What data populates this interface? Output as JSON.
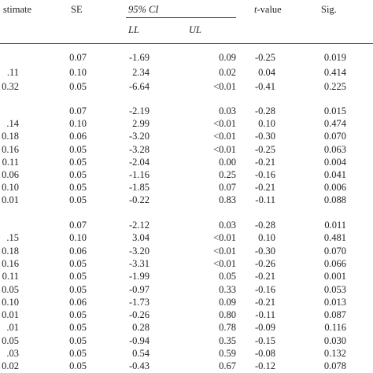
{
  "header": {
    "estimate": "stimate",
    "se": "SE",
    "ci": "95% CI",
    "ll": "LL",
    "ul": "UL",
    "t": "t",
    "t_rest": "-value",
    "sig": "Sig."
  },
  "groups": [
    [
      [
        "",
        "0.07",
        "-1.69",
        "0.09",
        "-0.25",
        "0.019"
      ],
      [
        ".11",
        "0.10",
        "2.34",
        "0.02",
        "0.04",
        "0.414"
      ],
      [
        "0.32",
        "0.05",
        "-6.64",
        "<0.01",
        "-0.41",
        "0.225"
      ]
    ],
    [
      [
        "",
        "0.07",
        "-2.19",
        "0.03",
        "-0.28",
        "0.015"
      ],
      [
        ".14",
        "0.10",
        "2.99",
        "<0.01",
        "0.10",
        "0.474"
      ],
      [
        "0.18",
        "0.06",
        "-3.20",
        "<0.01",
        "-0.30",
        "0.070"
      ],
      [
        "0.16",
        "0.05",
        "-3.28",
        "<0.01",
        "-0.25",
        "0.063"
      ],
      [
        "0.11",
        "0.05",
        "-2.04",
        "0.00",
        "-0.21",
        "0.004"
      ],
      [
        "0.06",
        "0.05",
        "-1.16",
        "0.25",
        "-0.16",
        "0.041"
      ],
      [
        "0.10",
        "0.05",
        "-1.85",
        "0.07",
        "-0.21",
        "0.006"
      ],
      [
        "0.01",
        "0.05",
        "-0.22",
        "0.83",
        "-0.11",
        "0.088"
      ]
    ],
    [
      [
        "",
        "0.07",
        "-2.12",
        "0.03",
        "-0.28",
        "0.011"
      ],
      [
        ".15",
        "0.10",
        "3.04",
        "<0.01",
        "0.10",
        "0.481"
      ],
      [
        "0.18",
        "0.06",
        "-3.20",
        "<0.01",
        "-0.30",
        "0.070"
      ],
      [
        "0.16",
        "0.05",
        "-3.31",
        "<0.01",
        "-0.26",
        "0.066"
      ],
      [
        "0.11",
        "0.05",
        "-1.99",
        "0.05",
        "-0.21",
        "0.001"
      ],
      [
        "0.05",
        "0.05",
        "-0.97",
        "0.33",
        "-0.16",
        "0.053"
      ],
      [
        "0.10",
        "0.06",
        "-1.73",
        "0.09",
        "-0.21",
        "0.013"
      ],
      [
        "0.01",
        "0.05",
        "-0.26",
        "0.80",
        "-0.11",
        "0.087"
      ],
      [
        ".01",
        "0.05",
        "0.28",
        "0.78",
        "-0.09",
        "0.116"
      ],
      [
        "0.05",
        "0.05",
        "-0.94",
        "0.35",
        "-0.15",
        "0.030"
      ],
      [
        ".03",
        "0.05",
        "0.54",
        "0.59",
        "-0.08",
        "0.132"
      ],
      [
        "0.02",
        "0.05",
        "-0.43",
        "0.67",
        "-0.12",
        "0.078"
      ]
    ]
  ]
}
